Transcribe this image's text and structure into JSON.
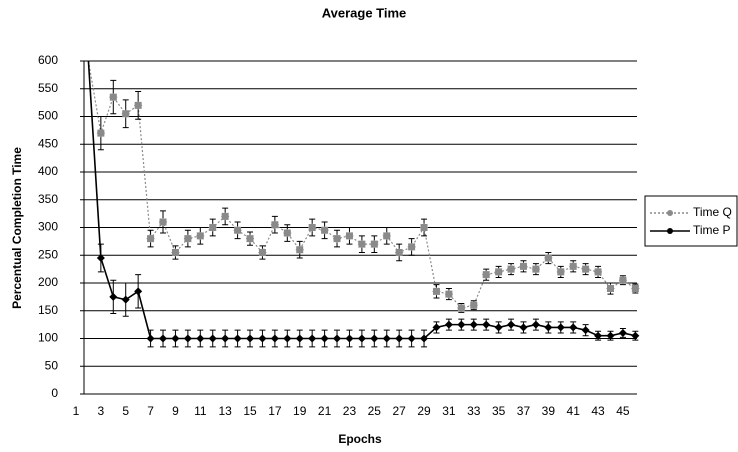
{
  "chart_data": {
    "type": "line",
    "title": "Average Time",
    "x_label": "Epochs",
    "y_label": "Percentual Completion Time",
    "categories": [
      "1",
      null,
      "3",
      null,
      "5",
      null,
      "7",
      null,
      "9",
      null,
      "11",
      null,
      "13",
      null,
      "15",
      null,
      "17",
      null,
      "19",
      null,
      "21",
      null,
      "23",
      null,
      "25",
      null,
      "27",
      null,
      "29",
      null,
      "31",
      null,
      "33",
      null,
      "35",
      null,
      "37",
      null,
      "39",
      null,
      "41",
      null,
      "43",
      null,
      "45",
      null
    ],
    "series": [
      {
        "name": "Time Q",
        "color": "#8a8a8a",
        "dashed": true,
        "marker": "asterisk",
        "values": [
          null,
          600,
          470,
          535,
          505,
          520,
          280,
          310,
          255,
          280,
          285,
          300,
          320,
          295,
          280,
          255,
          305,
          290,
          260,
          300,
          295,
          280,
          285,
          270,
          270,
          285,
          255,
          265,
          300,
          185,
          180,
          155,
          160,
          215,
          220,
          225,
          230,
          225,
          245,
          220,
          230,
          225,
          220,
          190,
          205,
          190
        ],
        "errors": [
          null,
          null,
          30,
          30,
          25,
          25,
          15,
          20,
          12,
          15,
          15,
          15,
          15,
          15,
          12,
          12,
          15,
          15,
          15,
          15,
          15,
          15,
          15,
          15,
          15,
          15,
          15,
          15,
          15,
          12,
          10,
          8,
          8,
          10,
          10,
          10,
          10,
          10,
          10,
          10,
          10,
          10,
          10,
          10,
          8,
          8
        ]
      },
      {
        "name": "Time P",
        "color": "#000000",
        "dashed": false,
        "marker": "diamond",
        "values": [
          null,
          600,
          245,
          175,
          170,
          185,
          100,
          100,
          100,
          100,
          100,
          100,
          100,
          100,
          100,
          100,
          100,
          100,
          100,
          100,
          100,
          100,
          100,
          100,
          100,
          100,
          100,
          100,
          100,
          120,
          125,
          125,
          125,
          125,
          120,
          125,
          120,
          125,
          120,
          120,
          120,
          115,
          105,
          105,
          110,
          105
        ],
        "errors": [
          null,
          null,
          25,
          30,
          30,
          30,
          15,
          15,
          15,
          15,
          15,
          15,
          15,
          15,
          15,
          15,
          15,
          15,
          15,
          15,
          15,
          15,
          15,
          15,
          15,
          15,
          15,
          15,
          15,
          10,
          10,
          10,
          10,
          10,
          10,
          10,
          10,
          10,
          10,
          10,
          10,
          10,
          8,
          8,
          8,
          8
        ]
      }
    ],
    "ylim": [
      0,
      600
    ],
    "yticks": [
      0,
      50,
      100,
      150,
      200,
      250,
      300,
      350,
      400,
      450,
      500,
      550,
      600
    ],
    "grid": true,
    "legend": "right"
  }
}
